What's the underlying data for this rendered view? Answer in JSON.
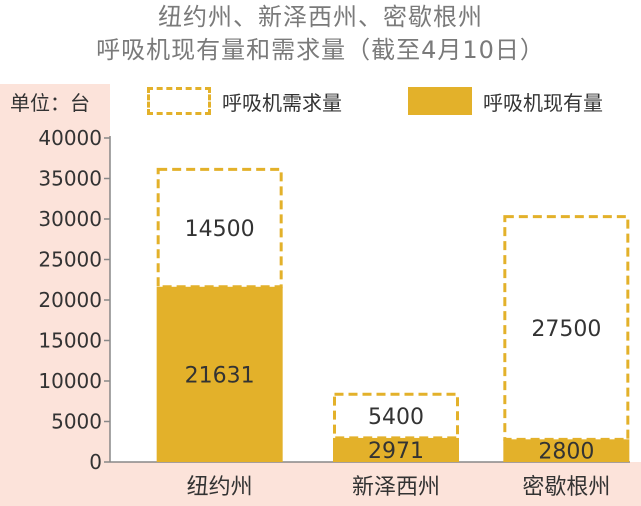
{
  "title_line1": "纽约州、新泽西州、密歇根州",
  "title_line2": "呼吸机现有量和需求量（截至4月10日）",
  "unit_label": "单位：台",
  "colors": {
    "accent": "#e3b12a",
    "panel": "#fce3da",
    "axis": "#888888",
    "text": "#333333"
  },
  "chart_data": {
    "type": "bar",
    "stacked": true,
    "categories": [
      "纽约州",
      "新泽西州",
      "密歇根州"
    ],
    "series": [
      {
        "name": "呼吸机现有量",
        "values": [
          21631,
          2971,
          2800
        ],
        "style": "solid"
      },
      {
        "name": "呼吸机需求量",
        "values": [
          14500,
          5400,
          27500
        ],
        "style": "dashed-outline"
      }
    ],
    "ylim": [
      0,
      40000
    ],
    "yticks": [
      0,
      5000,
      10000,
      15000,
      20000,
      25000,
      30000,
      35000,
      40000
    ],
    "legend_position": "top",
    "grid": false
  }
}
